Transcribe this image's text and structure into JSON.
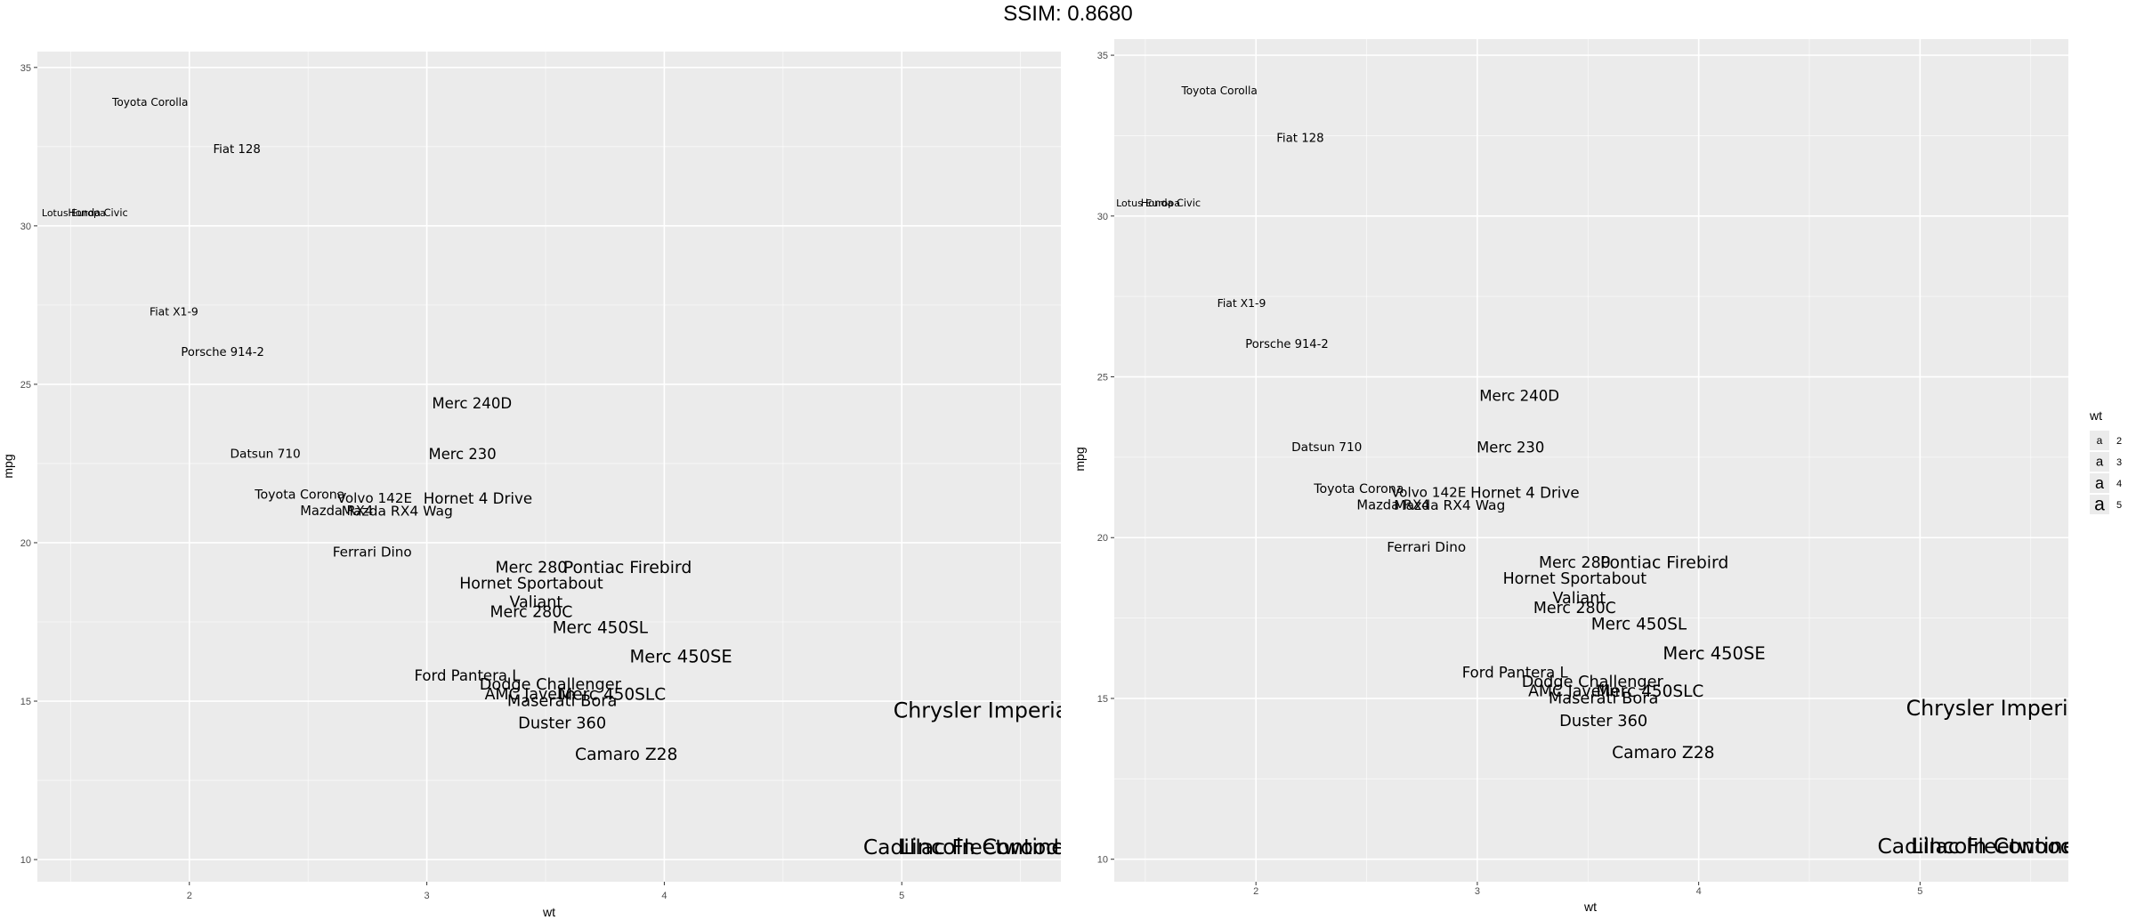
{
  "figure_title": "SSIM: 0.8680",
  "colors": {
    "panel_bg": "#ebebeb",
    "grid": "#ffffff",
    "text": "#000000",
    "tick_text": "#4d4d4d"
  },
  "chart_data": [
    {
      "type": "scatter",
      "title": "",
      "xlabel": "wt",
      "ylabel": "mpg",
      "xlim": [
        1.36,
        5.67
      ],
      "ylim": [
        9.3,
        35.5
      ],
      "xticks": [
        2,
        3,
        4,
        5
      ],
      "yticks": [
        10,
        15,
        20,
        25,
        30,
        35
      ],
      "grid": true,
      "legend": false,
      "points": [
        {
          "label": "Mazda RX4",
          "x": 2.62,
          "y": 21.0
        },
        {
          "label": "Mazda RX4 Wag",
          "x": 2.875,
          "y": 21.0
        },
        {
          "label": "Datsun 710",
          "x": 2.32,
          "y": 22.8
        },
        {
          "label": "Hornet 4 Drive",
          "x": 3.215,
          "y": 21.4
        },
        {
          "label": "Hornet Sportabout",
          "x": 3.44,
          "y": 18.7
        },
        {
          "label": "Valiant",
          "x": 3.46,
          "y": 18.1
        },
        {
          "label": "Duster 360",
          "x": 3.57,
          "y": 14.3
        },
        {
          "label": "Merc 240D",
          "x": 3.19,
          "y": 24.4
        },
        {
          "label": "Merc 230",
          "x": 3.15,
          "y": 22.8
        },
        {
          "label": "Merc 280",
          "x": 3.44,
          "y": 19.2
        },
        {
          "label": "Merc 280C",
          "x": 3.44,
          "y": 17.8
        },
        {
          "label": "Merc 450SE",
          "x": 4.07,
          "y": 16.4
        },
        {
          "label": "Merc 450SL",
          "x": 3.73,
          "y": 17.3
        },
        {
          "label": "Merc 450SLC",
          "x": 3.78,
          "y": 15.2
        },
        {
          "label": "Cadillac Fleetwood",
          "x": 5.25,
          "y": 10.4
        },
        {
          "label": "Lincoln Continental",
          "x": 5.424,
          "y": 10.4
        },
        {
          "label": "Chrysler Imperial",
          "x": 5.345,
          "y": 14.7
        },
        {
          "label": "Fiat 128",
          "x": 2.2,
          "y": 32.4
        },
        {
          "label": "Honda Civic",
          "x": 1.615,
          "y": 30.4
        },
        {
          "label": "Toyota Corolla",
          "x": 1.835,
          "y": 33.9
        },
        {
          "label": "Toyota Corona",
          "x": 2.465,
          "y": 21.5
        },
        {
          "label": "Dodge Challenger",
          "x": 3.52,
          "y": 15.5
        },
        {
          "label": "AMC Javelin",
          "x": 3.435,
          "y": 15.2
        },
        {
          "label": "Camaro Z28",
          "x": 3.84,
          "y": 13.3
        },
        {
          "label": "Pontiac Firebird",
          "x": 3.845,
          "y": 19.2
        },
        {
          "label": "Fiat X1-9",
          "x": 1.935,
          "y": 27.3
        },
        {
          "label": "Porsche 914-2",
          "x": 2.14,
          "y": 26.0
        },
        {
          "label": "Lotus Europa",
          "x": 1.513,
          "y": 30.4
        },
        {
          "label": "Ford Pantera L",
          "x": 3.17,
          "y": 15.8
        },
        {
          "label": "Ferrari Dino",
          "x": 2.77,
          "y": 19.7
        },
        {
          "label": "Maserati Bora",
          "x": 3.57,
          "y": 15.0
        },
        {
          "label": "Volvo 142E",
          "x": 2.78,
          "y": 21.4
        }
      ]
    },
    {
      "type": "scatter",
      "title": "",
      "xlabel": "wt",
      "ylabel": "mpg",
      "xlim": [
        1.36,
        5.67
      ],
      "ylim": [
        9.3,
        35.5
      ],
      "xticks": [
        2,
        3,
        4,
        5
      ],
      "yticks": [
        10,
        15,
        20,
        25,
        30,
        35
      ],
      "grid": true,
      "legend": true,
      "legend_position": "right",
      "legend_title": "wt",
      "legend_items": [
        "2",
        "3",
        "4",
        "5"
      ],
      "points": "same as chart 1"
    }
  ]
}
